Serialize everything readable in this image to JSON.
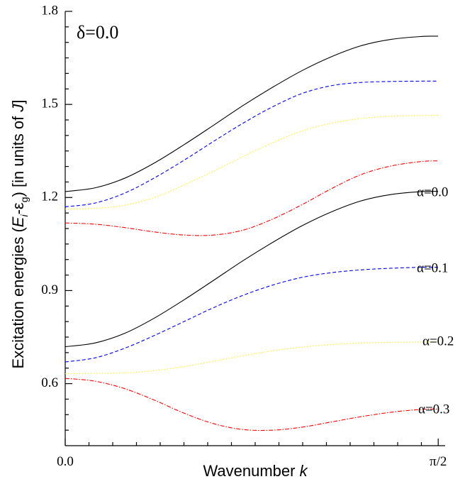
{
  "chart_data": {
    "type": "line",
    "annotation": "δ=0.0",
    "xlabel_main": "Wavenumber ",
    "xlabel_var": "k",
    "ylabel_parts": {
      "pre": "Excitation energies (",
      "E": "E",
      "i": "i",
      "dash": "-ε",
      "g": "g",
      "post": ") [in units of ",
      "J": "J",
      "end": "]"
    },
    "xlim": [
      0,
      1.6
    ],
    "ylim": [
      0.4,
      1.8
    ],
    "x_ticks": [
      {
        "value": 0,
        "label": "0.0"
      },
      {
        "value": 1.5708,
        "label": "π/2"
      }
    ],
    "y_ticks": [
      {
        "value": 0.6,
        "label": "0.6"
      },
      {
        "value": 0.9,
        "label": "0.9"
      },
      {
        "value": 1.2,
        "label": "1.2"
      },
      {
        "value": 1.5,
        "label": "1.5"
      },
      {
        "value": 1.8,
        "label": "1.8"
      }
    ],
    "x_minor_ticks": [
      0.1,
      0.2,
      0.3,
      0.4,
      0.5,
      0.6,
      0.7,
      0.8,
      0.9,
      1.0,
      1.1,
      1.2,
      1.3,
      1.4,
      1.5
    ],
    "y_minor_ticks": [
      0.45,
      0.5,
      0.55,
      0.65,
      0.7,
      0.75,
      0.8,
      0.85,
      0.95,
      1.0,
      1.05,
      1.1,
      1.15,
      1.25,
      1.3,
      1.35,
      1.4,
      1.45,
      1.55,
      1.6,
      1.65,
      1.7,
      1.75
    ],
    "x": [
      0,
      0.125,
      0.25,
      0.375,
      0.5,
      0.625,
      0.75,
      0.875,
      1.0,
      1.125,
      1.25,
      1.375,
      1.5,
      1.57
    ],
    "series": [
      {
        "branch": "upper",
        "alpha": "0.0",
        "color": "#000000",
        "dash": "",
        "values": [
          1.219,
          1.231,
          1.262,
          1.311,
          1.37,
          1.433,
          1.497,
          1.556,
          1.61,
          1.655,
          1.69,
          1.71,
          1.719,
          1.72
        ]
      },
      {
        "branch": "upper",
        "alpha": "0.1",
        "color": "#0000ff",
        "dash": "5,3",
        "values": [
          1.17,
          1.182,
          1.214,
          1.263,
          1.32,
          1.381,
          1.44,
          1.493,
          1.536,
          1.561,
          1.571,
          1.574,
          1.575,
          1.575
        ]
      },
      {
        "branch": "upper",
        "alpha": "0.2",
        "color": "#ffee00",
        "dash": "1.5,2.5",
        "values": [
          1.162,
          1.165,
          1.175,
          1.2,
          1.24,
          1.285,
          1.332,
          1.377,
          1.415,
          1.44,
          1.455,
          1.462,
          1.464,
          1.465
        ]
      },
      {
        "branch": "upper",
        "alpha": "0.3",
        "color": "#ff0000",
        "dash": "6,2,1.5,2",
        "values": [
          1.118,
          1.114,
          1.103,
          1.089,
          1.079,
          1.079,
          1.095,
          1.131,
          1.178,
          1.23,
          1.275,
          1.302,
          1.316,
          1.318
        ]
      },
      {
        "branch": "lower",
        "alpha": "0.0",
        "color": "#000000",
        "dash": "",
        "values": [
          0.719,
          0.731,
          0.762,
          0.811,
          0.87,
          0.933,
          0.997,
          1.056,
          1.11,
          1.155,
          1.19,
          1.21,
          1.219,
          1.22
        ]
      },
      {
        "branch": "lower",
        "alpha": "0.1",
        "color": "#0000ff",
        "dash": "5,3",
        "values": [
          0.67,
          0.683,
          0.714,
          0.755,
          0.8,
          0.845,
          0.885,
          0.918,
          0.943,
          0.958,
          0.967,
          0.972,
          0.975,
          0.975
        ]
      },
      {
        "branch": "lower",
        "alpha": "0.2",
        "color": "#ffee00",
        "dash": "1.5,2.5",
        "values": [
          0.632,
          0.633,
          0.635,
          0.642,
          0.655,
          0.672,
          0.69,
          0.706,
          0.718,
          0.726,
          0.731,
          0.733,
          0.734,
          0.735
        ]
      },
      {
        "branch": "lower",
        "alpha": "0.3",
        "color": "#ff0000",
        "dash": "6,2,1.5,2",
        "values": [
          0.617,
          0.608,
          0.584,
          0.547,
          0.505,
          0.471,
          0.452,
          0.45,
          0.46,
          0.477,
          0.494,
          0.508,
          0.517,
          0.518
        ]
      }
    ],
    "labels": [
      {
        "text": "α=0.0",
        "y": 1.22
      },
      {
        "text": "α=0.1",
        "y": 0.975
      },
      {
        "text": "α=0.2",
        "y": 0.74
      },
      {
        "text": "α=0.3",
        "y": 0.52
      }
    ]
  }
}
